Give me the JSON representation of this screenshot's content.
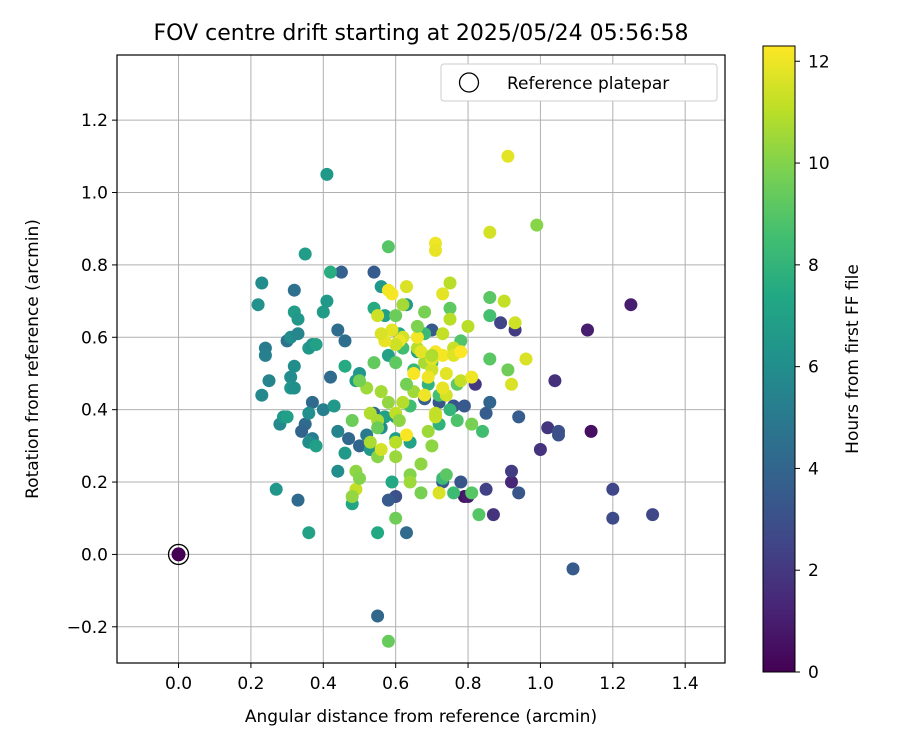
{
  "chart_data": {
    "type": "scatter",
    "title": "FOV centre drift starting at 2025/05/24 05:56:58",
    "xlabel": "Angular distance from reference (arcmin)",
    "ylabel": "Rotation from reference (arcmin)",
    "xlim": [
      -0.17,
      1.51
    ],
    "ylim": [
      -0.3,
      1.38
    ],
    "xticks": [
      0.0,
      0.2,
      0.4,
      0.6,
      0.8,
      1.0,
      1.2,
      1.4
    ],
    "yticks": [
      -0.2,
      0.0,
      0.2,
      0.4,
      0.6,
      0.8,
      1.0,
      1.2
    ],
    "grid": true,
    "legend": {
      "placement": "top-right",
      "entries": [
        "Reference platepar"
      ]
    },
    "colorbar": {
      "label": "Hours from first FF file",
      "min": 0,
      "max": 12.3,
      "ticks": [
        0,
        2,
        4,
        6,
        8,
        10,
        12
      ],
      "colormap": "viridis"
    },
    "reference": {
      "x": 0.0,
      "y": 0.0,
      "c": 0
    },
    "points": [
      [
        1.25,
        0.69,
        1.0
      ],
      [
        1.13,
        0.62,
        1.0
      ],
      [
        1.14,
        0.34,
        0.5
      ],
      [
        0.79,
        0.16,
        0.6
      ],
      [
        0.8,
        0.16,
        0.9
      ],
      [
        1.04,
        0.48,
        1.7
      ],
      [
        1.02,
        0.35,
        1.9
      ],
      [
        1.0,
        0.29,
        1.8
      ],
      [
        0.92,
        0.2,
        1.3
      ],
      [
        0.92,
        0.23,
        2.2
      ],
      [
        0.93,
        0.62,
        2.1
      ],
      [
        0.89,
        0.64,
        2.5
      ],
      [
        0.87,
        0.11,
        1.8
      ],
      [
        0.85,
        0.18,
        2.4
      ],
      [
        0.82,
        0.47,
        2.0
      ],
      [
        1.2,
        0.18,
        2.6
      ],
      [
        1.2,
        0.1,
        2.8
      ],
      [
        1.31,
        0.11,
        2.6
      ],
      [
        1.09,
        -0.04,
        3.5
      ],
      [
        1.05,
        0.33,
        3.1
      ],
      [
        1.05,
        0.34,
        3.0
      ],
      [
        0.94,
        0.17,
        3.3
      ],
      [
        0.94,
        0.38,
        3.6
      ],
      [
        0.85,
        0.39,
        3.6
      ],
      [
        0.86,
        0.42,
        4.0
      ],
      [
        0.78,
        0.2,
        3.3
      ],
      [
        0.76,
        0.41,
        3.2
      ],
      [
        0.79,
        0.41,
        3.4
      ],
      [
        0.72,
        0.42,
        3.3
      ],
      [
        0.73,
        0.2,
        3.5
      ],
      [
        0.68,
        0.43,
        3.6
      ],
      [
        0.7,
        0.62,
        3.5
      ],
      [
        0.6,
        0.16,
        3.0
      ],
      [
        0.58,
        0.15,
        3.5
      ],
      [
        0.54,
        0.78,
        3.5
      ],
      [
        0.45,
        0.78,
        3.8
      ],
      [
        0.63,
        0.06,
        4.3
      ],
      [
        0.55,
        -0.17,
        4.1
      ],
      [
        0.54,
        0.39,
        4.2
      ],
      [
        0.5,
        0.3,
        4.0
      ],
      [
        0.47,
        0.32,
        4.1
      ],
      [
        0.46,
        0.59,
        4.5
      ],
      [
        0.44,
        0.62,
        4.4
      ],
      [
        0.42,
        0.49,
        4.3
      ],
      [
        0.37,
        0.42,
        4.3
      ],
      [
        0.35,
        0.36,
        4.3
      ],
      [
        0.34,
        0.34,
        4.0
      ],
      [
        0.33,
        0.15,
        4.3
      ],
      [
        0.32,
        0.73,
        4.6
      ],
      [
        0.3,
        0.59,
        4.7
      ],
      [
        0.23,
        0.75,
        5.9
      ],
      [
        0.22,
        0.69,
        6.2
      ],
      [
        0.24,
        0.57,
        5.1
      ],
      [
        0.24,
        0.55,
        5.3
      ],
      [
        0.23,
        0.44,
        5.7
      ],
      [
        0.25,
        0.48,
        5.5
      ],
      [
        0.28,
        0.36,
        5.8
      ],
      [
        0.27,
        0.18,
        6.4
      ],
      [
        0.31,
        0.6,
        5.9
      ],
      [
        0.33,
        0.61,
        5.6
      ],
      [
        0.32,
        0.67,
        6.8
      ],
      [
        0.33,
        0.65,
        6.5
      ],
      [
        0.31,
        0.49,
        5.9
      ],
      [
        0.32,
        0.52,
        6.0
      ],
      [
        0.31,
        0.46,
        6.4
      ],
      [
        0.32,
        0.46,
        6.1
      ],
      [
        0.29,
        0.38,
        6.4
      ],
      [
        0.3,
        0.38,
        6.9
      ],
      [
        0.36,
        0.39,
        6.1
      ],
      [
        0.36,
        0.57,
        6.6
      ],
      [
        0.37,
        0.58,
        6.2
      ],
      [
        0.38,
        0.58,
        7.0
      ],
      [
        0.37,
        0.32,
        5.2
      ],
      [
        0.36,
        0.31,
        6.0
      ],
      [
        0.38,
        0.3,
        6.9
      ],
      [
        0.36,
        0.06,
        7.0
      ],
      [
        0.4,
        0.67,
        6.7
      ],
      [
        0.41,
        0.7,
        6.6
      ],
      [
        0.42,
        0.78,
        7.6
      ],
      [
        0.41,
        1.05,
        6.6
      ],
      [
        0.35,
        0.83,
        6.8
      ],
      [
        0.4,
        0.4,
        5.3
      ],
      [
        0.43,
        0.41,
        6.5
      ],
      [
        0.44,
        0.34,
        5.5
      ],
      [
        0.44,
        0.23,
        6.0
      ],
      [
        0.46,
        0.28,
        6.6
      ],
      [
        0.46,
        0.52,
        7.5
      ],
      [
        0.48,
        0.14,
        7.2
      ],
      [
        0.5,
        0.5,
        6.4
      ],
      [
        0.49,
        0.48,
        6.8
      ],
      [
        0.52,
        0.33,
        5.0
      ],
      [
        0.53,
        0.29,
        6.6
      ],
      [
        0.54,
        0.68,
        7.5
      ],
      [
        0.55,
        0.06,
        7.4
      ],
      [
        0.56,
        0.74,
        6.5
      ],
      [
        0.57,
        0.66,
        6.9
      ],
      [
        0.58,
        0.85,
        9.0
      ],
      [
        0.58,
        0.55,
        7.0
      ],
      [
        0.57,
        0.38,
        7.0
      ],
      [
        0.56,
        0.35,
        6.0
      ],
      [
        0.59,
        0.2,
        7.4
      ],
      [
        0.6,
        0.38,
        6.5
      ],
      [
        0.6,
        0.32,
        6.8
      ],
      [
        0.61,
        0.61,
        7.3
      ],
      [
        0.63,
        0.69,
        6.7
      ],
      [
        0.62,
        0.57,
        8.5
      ],
      [
        0.64,
        0.31,
        7.1
      ],
      [
        0.64,
        0.41,
        8.5
      ],
      [
        0.66,
        0.56,
        7.0
      ],
      [
        0.65,
        0.51,
        8.2
      ],
      [
        0.68,
        0.61,
        8.3
      ],
      [
        0.68,
        0.67,
        9.8
      ],
      [
        0.69,
        0.47,
        8.0
      ],
      [
        0.7,
        0.53,
        8.4
      ],
      [
        0.72,
        0.36,
        7.9
      ],
      [
        0.72,
        0.44,
        8.6
      ],
      [
        0.73,
        0.21,
        8.3
      ],
      [
        0.74,
        0.22,
        9.1
      ],
      [
        0.75,
        0.68,
        9.2
      ],
      [
        0.75,
        0.4,
        8.1
      ],
      [
        0.76,
        0.17,
        8.4
      ],
      [
        0.77,
        0.37,
        8.8
      ],
      [
        0.77,
        0.47,
        9.2
      ],
      [
        0.78,
        0.59,
        8.9
      ],
      [
        0.81,
        0.17,
        9.0
      ],
      [
        0.81,
        0.36,
        9.8
      ],
      [
        0.83,
        0.11,
        9.0
      ],
      [
        0.84,
        0.34,
        8.5
      ],
      [
        0.86,
        0.54,
        9.1
      ],
      [
        0.86,
        0.66,
        8.6
      ],
      [
        0.86,
        0.71,
        9.1
      ],
      [
        0.91,
        0.51,
        9.6
      ],
      [
        0.99,
        0.91,
        10.1
      ],
      [
        0.58,
        -0.24,
        9.4
      ],
      [
        0.6,
        0.1,
        9.6
      ],
      [
        0.6,
        0.27,
        10.4
      ],
      [
        0.64,
        0.22,
        10.0
      ],
      [
        0.64,
        0.2,
        10.5
      ],
      [
        0.67,
        0.17,
        9.8
      ],
      [
        0.67,
        0.25,
        10.2
      ],
      [
        0.69,
        0.34,
        10.5
      ],
      [
        0.7,
        0.3,
        10.2
      ],
      [
        0.72,
        0.17,
        11.6
      ],
      [
        0.49,
        0.18,
        11.2
      ],
      [
        0.48,
        0.16,
        10.3
      ],
      [
        0.49,
        0.23,
        10.2
      ],
      [
        0.5,
        0.21,
        10.0
      ],
      [
        0.52,
        0.46,
        10.5
      ],
      [
        0.53,
        0.31,
        10.7
      ],
      [
        0.53,
        0.39,
        10.8
      ],
      [
        0.55,
        0.27,
        10.1
      ],
      [
        0.55,
        0.37,
        10.7
      ],
      [
        0.56,
        0.45,
        10.6
      ],
      [
        0.58,
        0.42,
        10.3
      ],
      [
        0.6,
        0.39,
        11.1
      ],
      [
        0.61,
        0.37,
        10.2
      ],
      [
        0.62,
        0.42,
        10.9
      ],
      [
        0.65,
        0.45,
        10.5
      ],
      [
        0.66,
        0.57,
        11.0
      ],
      [
        0.68,
        0.53,
        10.7
      ],
      [
        0.7,
        0.51,
        11.4
      ],
      [
        0.71,
        0.38,
        11.3
      ],
      [
        0.73,
        0.61,
        11.2
      ],
      [
        0.74,
        0.44,
        11.5
      ],
      [
        0.74,
        0.5,
        11.8
      ],
      [
        0.75,
        0.75,
        11.0
      ],
      [
        0.76,
        0.57,
        11.3
      ],
      [
        0.78,
        0.48,
        11.2
      ],
      [
        0.8,
        0.63,
        11.0
      ],
      [
        0.81,
        0.49,
        12.0
      ],
      [
        0.86,
        0.89,
        11.5
      ],
      [
        0.9,
        0.7,
        11.2
      ],
      [
        0.91,
        1.1,
        11.8
      ],
      [
        0.92,
        0.47,
        11.6
      ],
      [
        0.93,
        0.64,
        11.4
      ],
      [
        0.96,
        0.54,
        11.6
      ],
      [
        0.71,
        0.86,
        12.0
      ],
      [
        0.71,
        0.84,
        11.9
      ],
      [
        0.73,
        0.72,
        11.8
      ],
      [
        0.73,
        0.55,
        12.1
      ],
      [
        0.7,
        0.54,
        11.7
      ],
      [
        0.68,
        0.44,
        12.0
      ],
      [
        0.67,
        0.56,
        11.8
      ],
      [
        0.65,
        0.5,
        12.2
      ],
      [
        0.63,
        0.74,
        11.6
      ],
      [
        0.62,
        0.6,
        11.5
      ],
      [
        0.61,
        0.59,
        12.0
      ],
      [
        0.6,
        0.58,
        11.4
      ],
      [
        0.59,
        0.72,
        12.2
      ],
      [
        0.59,
        0.62,
        11.8
      ],
      [
        0.58,
        0.73,
        12.1
      ],
      [
        0.57,
        0.59,
        11.9
      ],
      [
        0.56,
        0.61,
        11.6
      ],
      [
        0.55,
        0.66,
        11.4
      ],
      [
        0.56,
        0.29,
        11.5
      ],
      [
        0.6,
        0.31,
        11.0
      ],
      [
        0.63,
        0.33,
        12.2
      ],
      [
        0.66,
        0.6,
        12.1
      ],
      [
        0.69,
        0.49,
        12.0
      ],
      [
        0.71,
        0.56,
        12.2
      ],
      [
        0.73,
        0.46,
        11.9
      ],
      [
        0.76,
        0.55,
        11.7
      ],
      [
        0.78,
        0.56,
        12.3
      ],
      [
        0.75,
        0.65,
        11.0
      ],
      [
        0.71,
        0.39,
        11.2
      ],
      [
        0.55,
        0.35,
        9.5
      ],
      [
        0.7,
        0.55,
        10.8
      ],
      [
        0.66,
        0.63,
        9.9
      ],
      [
        0.62,
        0.69,
        10.6
      ],
      [
        0.6,
        0.66,
        9.5
      ],
      [
        0.54,
        0.53,
        9.3
      ],
      [
        0.5,
        0.48,
        9.7
      ],
      [
        0.48,
        0.37,
        9.5
      ],
      [
        0.63,
        0.47,
        9.7
      ],
      [
        0.6,
        0.53,
        9.2
      ]
    ]
  }
}
